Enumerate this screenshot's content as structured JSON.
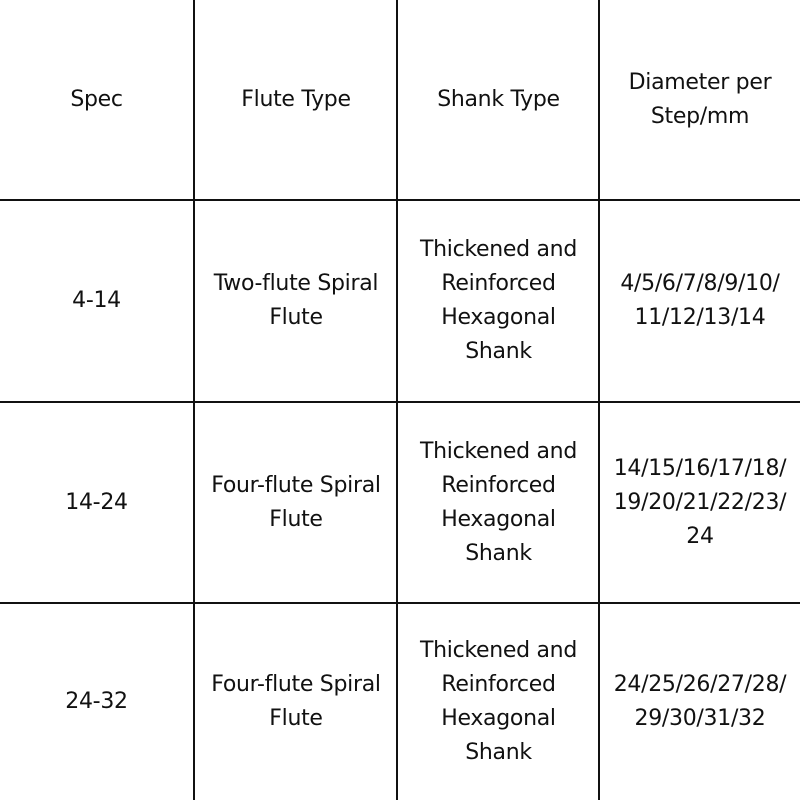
{
  "headers": [
    "Spec",
    "Flute Type",
    "Shank Type",
    "Diameter per\nStep/mm"
  ],
  "rows": [
    [
      "4-14",
      "Two-flute Spiral\nFlute",
      "Thickened and\nReinforced\nHexagonal\nShank",
      "4/5/6/7/8/9/10/\n11/12/13/14"
    ],
    [
      "14-24",
      "Four-flute Spiral\nFlute",
      "Thickened and\nReinforced\nHexagonal\nShank",
      "14/15/16/17/18/\n19/20/21/22/23/\n24"
    ],
    [
      "24-32",
      "Four-flute Spiral\nFlute",
      "Thickened and\nReinforced\nHexagonal\nShank",
      "24/25/26/27/28/\n29/30/31/32"
    ]
  ]
}
